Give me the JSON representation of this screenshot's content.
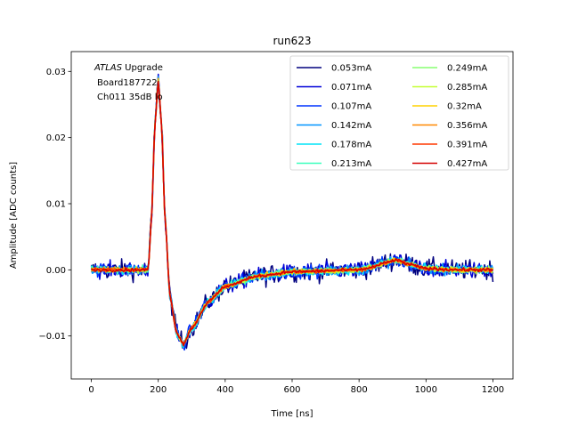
{
  "chart_data": {
    "type": "line",
    "title": "run623",
    "xlabel": "Time [ns]",
    "ylabel": "Amplitude [ADC counts]",
    "xlim": [
      -60,
      1260
    ],
    "ylim": [
      -0.0165,
      0.033
    ],
    "xticks": [
      0,
      200,
      400,
      600,
      800,
      1000,
      1200
    ],
    "xtick_labels": [
      "0",
      "200",
      "400",
      "600",
      "800",
      "1000",
      "1200"
    ],
    "yticks": [
      -0.01,
      0.0,
      0.01,
      0.02,
      0.03
    ],
    "ytick_labels": [
      "−0.01",
      "0.00",
      "0.01",
      "0.02",
      "0.03"
    ],
    "grid": false,
    "legend_placement": "top-right",
    "annotation": {
      "line1_italic": "ATLAS",
      "line1_rest": " Upgrade",
      "line2": "Board187722",
      "line3": "Ch011 35dB lo"
    },
    "x_sampling": {
      "start": 0,
      "end": 1200,
      "step": 3.125
    },
    "pulse_shape": {
      "points": [
        [
          0,
          0.0
        ],
        [
          170,
          0.0
        ],
        [
          180,
          0.008
        ],
        [
          190,
          0.022
        ],
        [
          200,
          0.0285
        ],
        [
          210,
          0.022
        ],
        [
          220,
          0.008
        ],
        [
          235,
          -0.004
        ],
        [
          255,
          -0.0095
        ],
        [
          275,
          -0.0112
        ],
        [
          300,
          -0.0088
        ],
        [
          350,
          -0.0048
        ],
        [
          400,
          -0.0025
        ],
        [
          500,
          -0.0009
        ],
        [
          600,
          -0.0003
        ],
        [
          800,
          0.0
        ],
        [
          840,
          0.0004
        ],
        [
          880,
          0.0011
        ],
        [
          910,
          0.0015
        ],
        [
          950,
          0.0008
        ],
        [
          1000,
          0.0002
        ],
        [
          1100,
          0.0
        ],
        [
          1200,
          0.0
        ]
      ]
    },
    "series": [
      {
        "name": "0.053mA",
        "color": "#00007f",
        "scale": 1.0,
        "noise": 0.00105
      },
      {
        "name": "0.071mA",
        "color": "#0000d8",
        "scale": 1.0,
        "noise": 0.00085
      },
      {
        "name": "0.107mA",
        "color": "#0034ff",
        "scale": 1.0,
        "noise": 0.00068
      },
      {
        "name": "0.142mA",
        "color": "#0094ff",
        "scale": 1.0,
        "noise": 0.00055
      },
      {
        "name": "0.178mA",
        "color": "#00e4f7",
        "scale": 1.0,
        "noise": 0.00045
      },
      {
        "name": "0.213mA",
        "color": "#3affbc",
        "scale": 1.0,
        "noise": 0.00038
      },
      {
        "name": "0.249mA",
        "color": "#87ff70",
        "scale": 1.0,
        "noise": 0.00033
      },
      {
        "name": "0.285mA",
        "color": "#c4ff33",
        "scale": 1.0,
        "noise": 0.00029
      },
      {
        "name": "0.32mA",
        "color": "#ffd200",
        "scale": 1.0,
        "noise": 0.00026
      },
      {
        "name": "0.356mA",
        "color": "#ff8800",
        "scale": 1.0,
        "noise": 0.00023
      },
      {
        "name": "0.391mA",
        "color": "#ff3800",
        "scale": 1.0,
        "noise": 0.00021
      },
      {
        "name": "0.427mA",
        "color": "#d40000",
        "scale": 1.0,
        "noise": 0.00019
      }
    ]
  }
}
